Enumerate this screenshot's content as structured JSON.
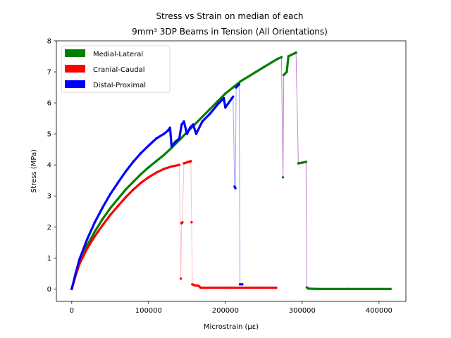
{
  "chart_data": {
    "type": "scatter",
    "title": [
      "Stress vs Strain on median of each",
      "9mm³ 3DP Beams in Tension (All Orientations)"
    ],
    "xlabel": "Microstrain (µε)",
    "ylabel": "Stress (MPa)",
    "xlim": [
      -20000,
      435000
    ],
    "ylim": [
      -0.4,
      8.0
    ],
    "xticks": [
      0,
      100000,
      200000,
      300000,
      400000
    ],
    "xtick_labels": [
      "0",
      "100000",
      "200000",
      "300000",
      "400000"
    ],
    "yticks": [
      0,
      1,
      2,
      3,
      4,
      5,
      6,
      7,
      8
    ],
    "ytick_labels": [
      "0",
      "1",
      "2",
      "3",
      "4",
      "5",
      "6",
      "7",
      "8"
    ],
    "grid": false,
    "legend_position": "top-left",
    "series": [
      {
        "name": "Medial-Lateral",
        "color": "#008000",
        "connector_color": "#c080d0",
        "points": [
          [
            0,
            0
          ],
          [
            5000,
            0.45
          ],
          [
            10000,
            0.85
          ],
          [
            20000,
            1.4
          ],
          [
            30000,
            1.85
          ],
          [
            40000,
            2.25
          ],
          [
            50000,
            2.6
          ],
          [
            60000,
            2.9
          ],
          [
            70000,
            3.2
          ],
          [
            80000,
            3.45
          ],
          [
            90000,
            3.7
          ],
          [
            100000,
            3.92
          ],
          [
            110000,
            4.12
          ],
          [
            120000,
            4.32
          ],
          [
            130000,
            4.55
          ],
          [
            140000,
            4.8
          ],
          [
            150000,
            5.05
          ],
          [
            160000,
            5.3
          ],
          [
            170000,
            5.55
          ],
          [
            180000,
            5.8
          ],
          [
            190000,
            6.05
          ],
          [
            200000,
            6.3
          ],
          [
            210000,
            6.5
          ],
          [
            220000,
            6.7
          ],
          [
            230000,
            6.85
          ],
          [
            240000,
            7.0
          ],
          [
            250000,
            7.15
          ],
          [
            260000,
            7.3
          ],
          [
            268000,
            7.42
          ],
          [
            273000,
            7.47
          ],
          [
            275000,
            3.6
          ],
          [
            276000,
            6.9
          ],
          [
            280000,
            7.0
          ],
          [
            282000,
            7.5
          ],
          [
            292000,
            7.62
          ],
          [
            295000,
            4.05
          ],
          [
            300000,
            4.07
          ],
          [
            305000,
            4.1
          ],
          [
            306000,
            0.05
          ],
          [
            308000,
            0.01
          ],
          [
            320000,
            0.0
          ],
          [
            360000,
            0.0
          ],
          [
            400000,
            0.0
          ],
          [
            415000,
            0.0
          ]
        ]
      },
      {
        "name": "Cranial-Caudal",
        "color": "#ff0000",
        "connector_color": "#ffc0c0",
        "points": [
          [
            0,
            0
          ],
          [
            5000,
            0.43
          ],
          [
            10000,
            0.8
          ],
          [
            20000,
            1.3
          ],
          [
            30000,
            1.7
          ],
          [
            40000,
            2.05
          ],
          [
            50000,
            2.38
          ],
          [
            60000,
            2.67
          ],
          [
            70000,
            2.95
          ],
          [
            80000,
            3.2
          ],
          [
            90000,
            3.42
          ],
          [
            100000,
            3.6
          ],
          [
            110000,
            3.75
          ],
          [
            120000,
            3.87
          ],
          [
            130000,
            3.95
          ],
          [
            140000,
            4.0
          ],
          [
            142000,
            0.33
          ],
          [
            143000,
            2.12
          ],
          [
            144000,
            2.15
          ],
          [
            146000,
            4.05
          ],
          [
            152000,
            4.1
          ],
          [
            155000,
            4.12
          ],
          [
            156000,
            2.15
          ],
          [
            157000,
            0.15
          ],
          [
            160000,
            0.12
          ],
          [
            165000,
            0.1
          ],
          [
            168000,
            0.04
          ],
          [
            200000,
            0.04
          ],
          [
            240000,
            0.04
          ],
          [
            266000,
            0.04
          ]
        ]
      },
      {
        "name": "Distal-Proximal",
        "color": "#0000ff",
        "connector_color": "#a0a0ff",
        "points": [
          [
            0,
            0
          ],
          [
            5000,
            0.5
          ],
          [
            10000,
            0.95
          ],
          [
            20000,
            1.6
          ],
          [
            30000,
            2.15
          ],
          [
            40000,
            2.62
          ],
          [
            50000,
            3.05
          ],
          [
            60000,
            3.42
          ],
          [
            70000,
            3.78
          ],
          [
            80000,
            4.1
          ],
          [
            90000,
            4.38
          ],
          [
            100000,
            4.62
          ],
          [
            110000,
            4.85
          ],
          [
            120000,
            5.0
          ],
          [
            125000,
            5.1
          ],
          [
            128000,
            5.2
          ],
          [
            130000,
            4.6
          ],
          [
            135000,
            4.75
          ],
          [
            140000,
            4.85
          ],
          [
            143000,
            5.3
          ],
          [
            146000,
            5.4
          ],
          [
            150000,
            5.0
          ],
          [
            154000,
            5.2
          ],
          [
            158000,
            5.3
          ],
          [
            162000,
            5.0
          ],
          [
            170000,
            5.4
          ],
          [
            180000,
            5.65
          ],
          [
            190000,
            5.95
          ],
          [
            198000,
            6.15
          ],
          [
            200000,
            5.85
          ],
          [
            210000,
            6.2
          ],
          [
            212000,
            3.3
          ],
          [
            213000,
            3.25
          ],
          [
            214000,
            6.5
          ],
          [
            218000,
            6.6
          ],
          [
            219000,
            0.15
          ],
          [
            222000,
            0.15
          ]
        ]
      }
    ]
  }
}
